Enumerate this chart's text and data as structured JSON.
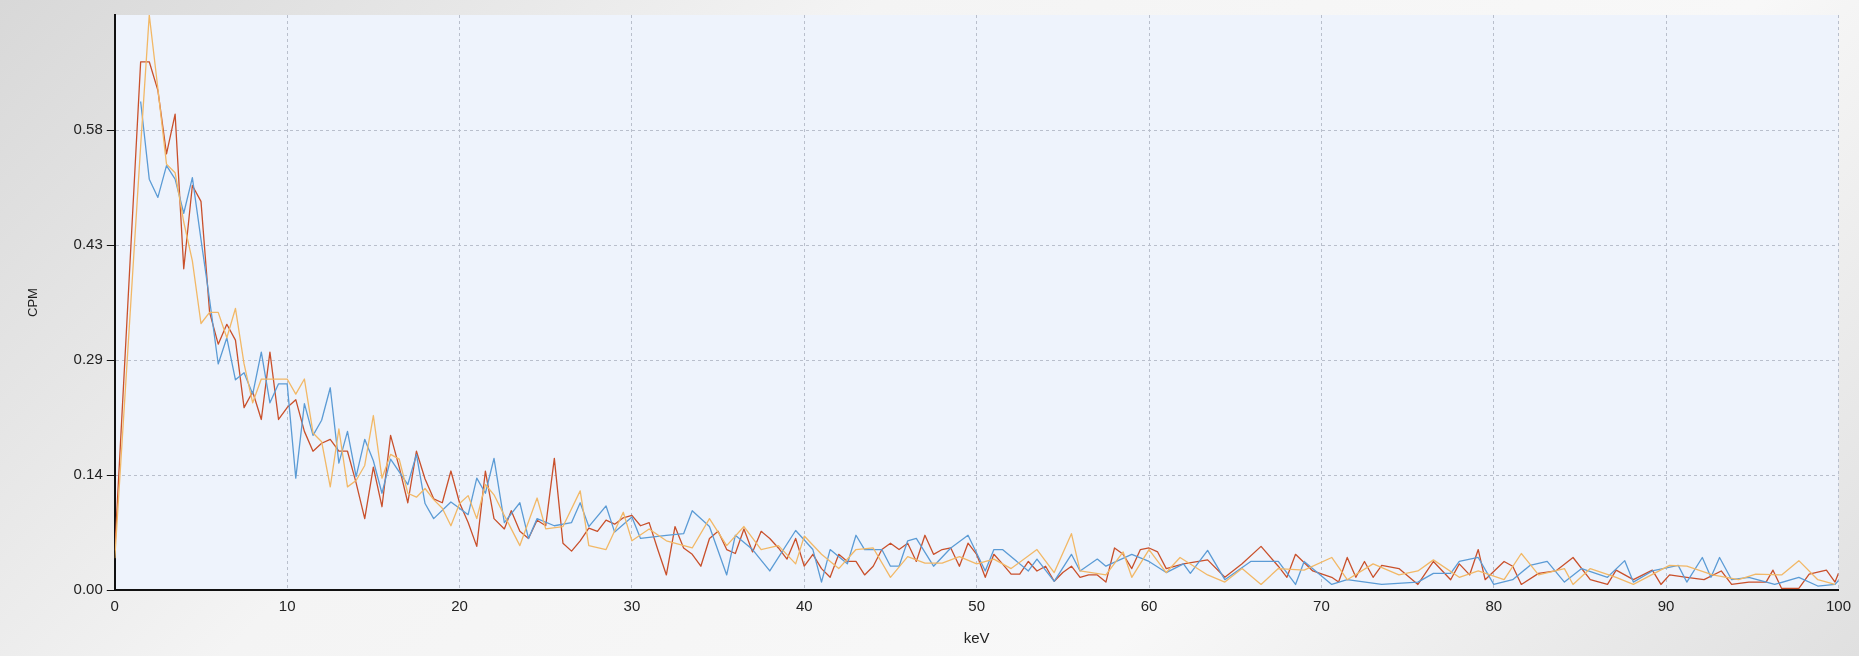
{
  "chart_data": {
    "type": "line",
    "xlabel": "keV",
    "ylabel": "CPM",
    "xlim": [
      0,
      100
    ],
    "xticks": [
      0,
      10,
      20,
      30,
      40,
      50,
      60,
      70,
      80,
      90,
      100
    ],
    "ylim": [
      0,
      0.725
    ],
    "yticks": [
      {
        "value": 0,
        "label": "0.00"
      },
      {
        "value": 0.145,
        "label": "0.14"
      },
      {
        "value": 0.29,
        "label": "0.29"
      },
      {
        "value": 0.435,
        "label": "0.43"
      },
      {
        "value": 0.58,
        "label": "0.58"
      }
    ],
    "grid": true,
    "legend": false,
    "marker": "none",
    "line_style": "solid",
    "series": [
      {
        "color": "#f2b866",
        "x": [
          0,
          1.5,
          2,
          2.5,
          3,
          3.5,
          4,
          4.5,
          5,
          5.5,
          6,
          6.5,
          7,
          7.5,
          8,
          8.5,
          9,
          9.5,
          10,
          10.5,
          11,
          11.5,
          12,
          12.5,
          13,
          13.5,
          14,
          14.5,
          15,
          15.5,
          16,
          16.5,
          17,
          17.5,
          18,
          18.5,
          19,
          19.5,
          20,
          20.5,
          21,
          21.5,
          22,
          22.6,
          23.5,
          24.5,
          25,
          26,
          27,
          27.5,
          28.5,
          29.5,
          30,
          31,
          32,
          33.5,
          34.5,
          35.5,
          36.5,
          37.5,
          38.5,
          39.5,
          40,
          41,
          42,
          43,
          44,
          45,
          46,
          47,
          48,
          49,
          50,
          51,
          52,
          53.5,
          54.5,
          55.5,
          56,
          57.5,
          58.5,
          59,
          60,
          61,
          61.8,
          63.4,
          64.4,
          65.4,
          66.5,
          67.5,
          69,
          70.6,
          71.5,
          73,
          74.5,
          75.6,
          76.5,
          78,
          79.1,
          80.6,
          81.6,
          82.6,
          84.1,
          84.6,
          85.6,
          87.1,
          88.1,
          90.2,
          91.2,
          92.7,
          94.2,
          95.2,
          96.7,
          97.7,
          98.8,
          99.8
        ],
        "values": [
          0.04,
          0.56,
          0.725,
          0.632,
          0.537,
          0.526,
          0.464,
          0.415,
          0.336,
          0.35,
          0.35,
          0.318,
          0.355,
          0.285,
          0.236,
          0.266,
          0.266,
          0.266,
          0.266,
          0.247,
          0.266,
          0.198,
          0.187,
          0.13,
          0.203,
          0.13,
          0.138,
          0.157,
          0.22,
          0.141,
          0.171,
          0.165,
          0.122,
          0.117,
          0.128,
          0.114,
          0.103,
          0.081,
          0.109,
          0.119,
          0.09,
          0.133,
          0.12,
          0.094,
          0.056,
          0.116,
          0.077,
          0.08,
          0.125,
          0.056,
          0.051,
          0.098,
          0.062,
          0.077,
          0.062,
          0.053,
          0.09,
          0.056,
          0.08,
          0.051,
          0.056,
          0.033,
          0.068,
          0.045,
          0.027,
          0.051,
          0.053,
          0.016,
          0.042,
          0.034,
          0.034,
          0.042,
          0.033,
          0.039,
          0.027,
          0.051,
          0.022,
          0.071,
          0.024,
          0.019,
          0.048,
          0.016,
          0.051,
          0.022,
          0.041,
          0.019,
          0.01,
          0.027,
          0.007,
          0.027,
          0.025,
          0.041,
          0.013,
          0.033,
          0.019,
          0.024,
          0.038,
          0.016,
          0.024,
          0.013,
          0.046,
          0.019,
          0.027,
          0.007,
          0.027,
          0.016,
          0.007,
          0.031,
          0.03,
          0.019,
          0.013,
          0.02,
          0.019,
          0.037,
          0.013,
          0.007
        ]
      },
      {
        "color": "#5b9bd5",
        "x": [
          1.5,
          2,
          2.5,
          3,
          3.5,
          4,
          4.5,
          5,
          5.5,
          6,
          6.5,
          7,
          7.5,
          8,
          8.5,
          9,
          9.5,
          10,
          10.5,
          11,
          11.5,
          12,
          12.5,
          13,
          13.5,
          14,
          14.5,
          15,
          15.5,
          16,
          17,
          17.5,
          18,
          18.5,
          19.5,
          20.5,
          21,
          21.5,
          22,
          22.6,
          23.5,
          24,
          24.5,
          25.5,
          26.5,
          27,
          27.5,
          28.5,
          29,
          30,
          30.5,
          32,
          33,
          33.5,
          34.5,
          35.5,
          36,
          37,
          38,
          39.5,
          40.5,
          41,
          41.5,
          42.5,
          43,
          43.5,
          44.5,
          45,
          45.5,
          46,
          46.5,
          47.5,
          48.5,
          49.5,
          50.5,
          51,
          51.5,
          53,
          53.5,
          54.5,
          55.5,
          56,
          57,
          57.5,
          59,
          60,
          61,
          62,
          62.4,
          63.4,
          64.4,
          65.9,
          67.5,
          68.5,
          69,
          70.6,
          71.5,
          73.5,
          75.6,
          76.5,
          77.5,
          78,
          79.1,
          80,
          81.1,
          82.1,
          83.1,
          84.1,
          85.1,
          86.6,
          87.6,
          88.1,
          89.2,
          90.7,
          91.2,
          92.1,
          92.6,
          93.1,
          93.8,
          94.8,
          96.3,
          97.7,
          98.8,
          99.8,
          100
        ],
        "values": [
          0.616,
          0.518,
          0.495,
          0.535,
          0.518,
          0.475,
          0.52,
          0.442,
          0.366,
          0.285,
          0.318,
          0.265,
          0.274,
          0.247,
          0.3,
          0.236,
          0.26,
          0.26,
          0.141,
          0.235,
          0.195,
          0.214,
          0.255,
          0.16,
          0.2,
          0.143,
          0.19,
          0.163,
          0.122,
          0.165,
          0.133,
          0.171,
          0.109,
          0.09,
          0.111,
          0.095,
          0.141,
          0.122,
          0.166,
          0.085,
          0.11,
          0.065,
          0.09,
          0.081,
          0.085,
          0.11,
          0.08,
          0.106,
          0.073,
          0.092,
          0.065,
          0.069,
          0.071,
          0.1,
          0.08,
          0.019,
          0.069,
          0.051,
          0.024,
          0.075,
          0.051,
          0.01,
          0.051,
          0.033,
          0.069,
          0.051,
          0.051,
          0.03,
          0.03,
          0.062,
          0.065,
          0.03,
          0.053,
          0.069,
          0.024,
          0.051,
          0.051,
          0.024,
          0.039,
          0.011,
          0.045,
          0.024,
          0.039,
          0.03,
          0.045,
          0.036,
          0.022,
          0.033,
          0.021,
          0.05,
          0.013,
          0.036,
          0.036,
          0.007,
          0.036,
          0.007,
          0.013,
          0.007,
          0.01,
          0.021,
          0.021,
          0.036,
          0.041,
          0.007,
          0.013,
          0.031,
          0.036,
          0.01,
          0.027,
          0.016,
          0.037,
          0.01,
          0.024,
          0.031,
          0.01,
          0.041,
          0.016,
          0.041,
          0.013,
          0.016,
          0.007,
          0.016,
          0.005,
          0.007,
          0.012
        ]
      },
      {
        "color": "#c9502b",
        "x": [
          0,
          1.5,
          2,
          2.5,
          3,
          3.5,
          4,
          4.5,
          5,
          5.5,
          6,
          6.5,
          7,
          7.5,
          8,
          8.5,
          9,
          9.5,
          10,
          10.5,
          11,
          11.5,
          12,
          12.5,
          13,
          13.5,
          14,
          14.5,
          15,
          15.5,
          16,
          16.5,
          17,
          17.5,
          18,
          18.5,
          19,
          19.5,
          20,
          20.5,
          21,
          21.5,
          22,
          22.6,
          23,
          23.5,
          24,
          24.5,
          25,
          25.5,
          26,
          26.5,
          27,
          27.5,
          28,
          28.5,
          29,
          29.5,
          30,
          30.5,
          31,
          31.5,
          32,
          32.5,
          33,
          33.5,
          34,
          34.5,
          35,
          35.5,
          36,
          36.5,
          37,
          37.5,
          38,
          38.5,
          39,
          39.5,
          40,
          40.5,
          41,
          41.5,
          42,
          42.5,
          43,
          43.5,
          44,
          44.5,
          45,
          45.5,
          46,
          46.5,
          47,
          47.5,
          48,
          48.5,
          49,
          49.5,
          50,
          50.5,
          51,
          51.5,
          52,
          52.5,
          53,
          53.5,
          54,
          54.5,
          55,
          55.5,
          56,
          56.5,
          57,
          57.5,
          58,
          58.5,
          59,
          59.5,
          60,
          60.5,
          61,
          62,
          63.4,
          64.4,
          65.4,
          66.5,
          67.5,
          68,
          68.5,
          69.5,
          70.6,
          71,
          71.5,
          72,
          72.5,
          73,
          73.5,
          74.5,
          75.6,
          76.5,
          77.5,
          78,
          78.6,
          79.1,
          79.5,
          80.6,
          81.1,
          81.6,
          82.6,
          83.6,
          84.6,
          85.6,
          86.6,
          87.1,
          88.1,
          89.2,
          89.7,
          90.2,
          91.2,
          92.2,
          93.2,
          93.8,
          94.8,
          95.8,
          96.2,
          96.7,
          97.7,
          98.3,
          99.3,
          99.8,
          100
        ],
        "values": [
          0.05,
          0.666,
          0.666,
          0.63,
          0.55,
          0.6,
          0.405,
          0.51,
          0.49,
          0.35,
          0.31,
          0.335,
          0.315,
          0.23,
          0.25,
          0.215,
          0.3,
          0.215,
          0.23,
          0.24,
          0.2,
          0.175,
          0.185,
          0.19,
          0.175,
          0.175,
          0.135,
          0.09,
          0.155,
          0.105,
          0.195,
          0.155,
          0.11,
          0.175,
          0.14,
          0.115,
          0.11,
          0.15,
          0.11,
          0.085,
          0.055,
          0.15,
          0.09,
          0.077,
          0.1,
          0.074,
          0.065,
          0.088,
          0.081,
          0.166,
          0.059,
          0.049,
          0.062,
          0.078,
          0.074,
          0.088,
          0.083,
          0.091,
          0.094,
          0.081,
          0.085,
          0.051,
          0.019,
          0.08,
          0.053,
          0.045,
          0.03,
          0.065,
          0.074,
          0.051,
          0.046,
          0.077,
          0.048,
          0.074,
          0.065,
          0.053,
          0.039,
          0.065,
          0.03,
          0.045,
          0.027,
          0.016,
          0.045,
          0.036,
          0.036,
          0.019,
          0.03,
          0.051,
          0.059,
          0.051,
          0.059,
          0.036,
          0.069,
          0.045,
          0.051,
          0.053,
          0.03,
          0.059,
          0.045,
          0.016,
          0.045,
          0.033,
          0.02,
          0.02,
          0.036,
          0.024,
          0.03,
          0.011,
          0.022,
          0.03,
          0.016,
          0.019,
          0.019,
          0.01,
          0.053,
          0.045,
          0.027,
          0.051,
          0.053,
          0.048,
          0.027,
          0.033,
          0.038,
          0.016,
          0.033,
          0.055,
          0.03,
          0.016,
          0.045,
          0.024,
          0.016,
          0.01,
          0.041,
          0.016,
          0.036,
          0.016,
          0.031,
          0.027,
          0.007,
          0.036,
          0.013,
          0.033,
          0.019,
          0.051,
          0.013,
          0.036,
          0.03,
          0.007,
          0.021,
          0.024,
          0.041,
          0.013,
          0.007,
          0.025,
          0.013,
          0.025,
          0.007,
          0.019,
          0.016,
          0.013,
          0.024,
          0.007,
          0.01,
          0.01,
          0.025,
          0.002,
          0.002,
          0.02,
          0.025,
          0.01,
          0.021
        ]
      }
    ]
  }
}
